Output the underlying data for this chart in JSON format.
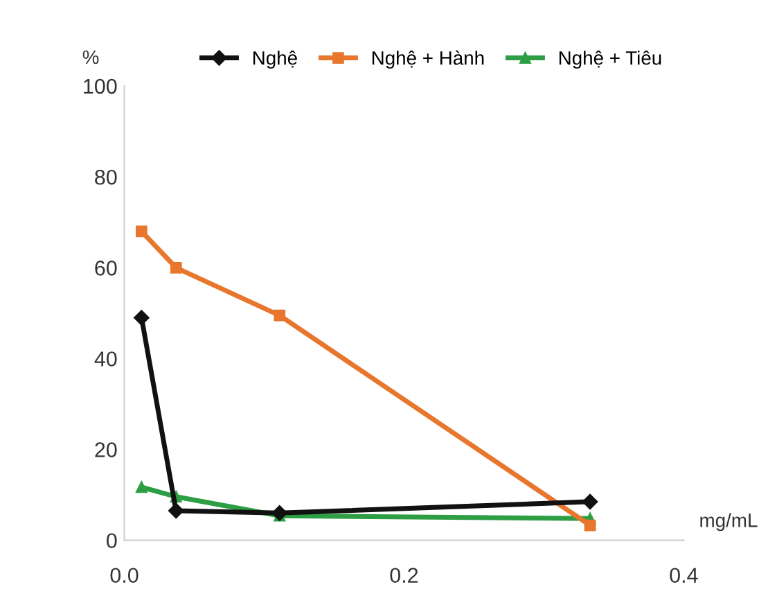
{
  "chart_data": {
    "type": "line",
    "xlabel": "mg/mL",
    "ylabel": "%",
    "x": [
      0.0123,
      0.037,
      0.111,
      0.333
    ],
    "series": [
      {
        "name": "Nghệ",
        "color": "#111111",
        "marker": "diamond",
        "values": [
          49,
          6.5,
          6,
          8.5
        ]
      },
      {
        "name": "Nghệ + Hành",
        "color": "#e8762d",
        "marker": "square",
        "values": [
          68,
          60,
          49.5,
          3.3
        ]
      },
      {
        "name": "Nghệ + Tiêu",
        "color": "#2e9e44",
        "marker": "triangle",
        "values": [
          11.7,
          9.6,
          5.4,
          4.8
        ]
      }
    ],
    "xlim": [
      0,
      0.4
    ],
    "xticks": [
      {
        "value": 0,
        "label": "0.0"
      },
      0.2,
      0.4
    ],
    "ylim": [
      0,
      100
    ],
    "yticks": [
      0,
      20,
      40,
      60,
      80,
      100
    ],
    "grid": false,
    "legend": "top",
    "line_style": "solid"
  }
}
